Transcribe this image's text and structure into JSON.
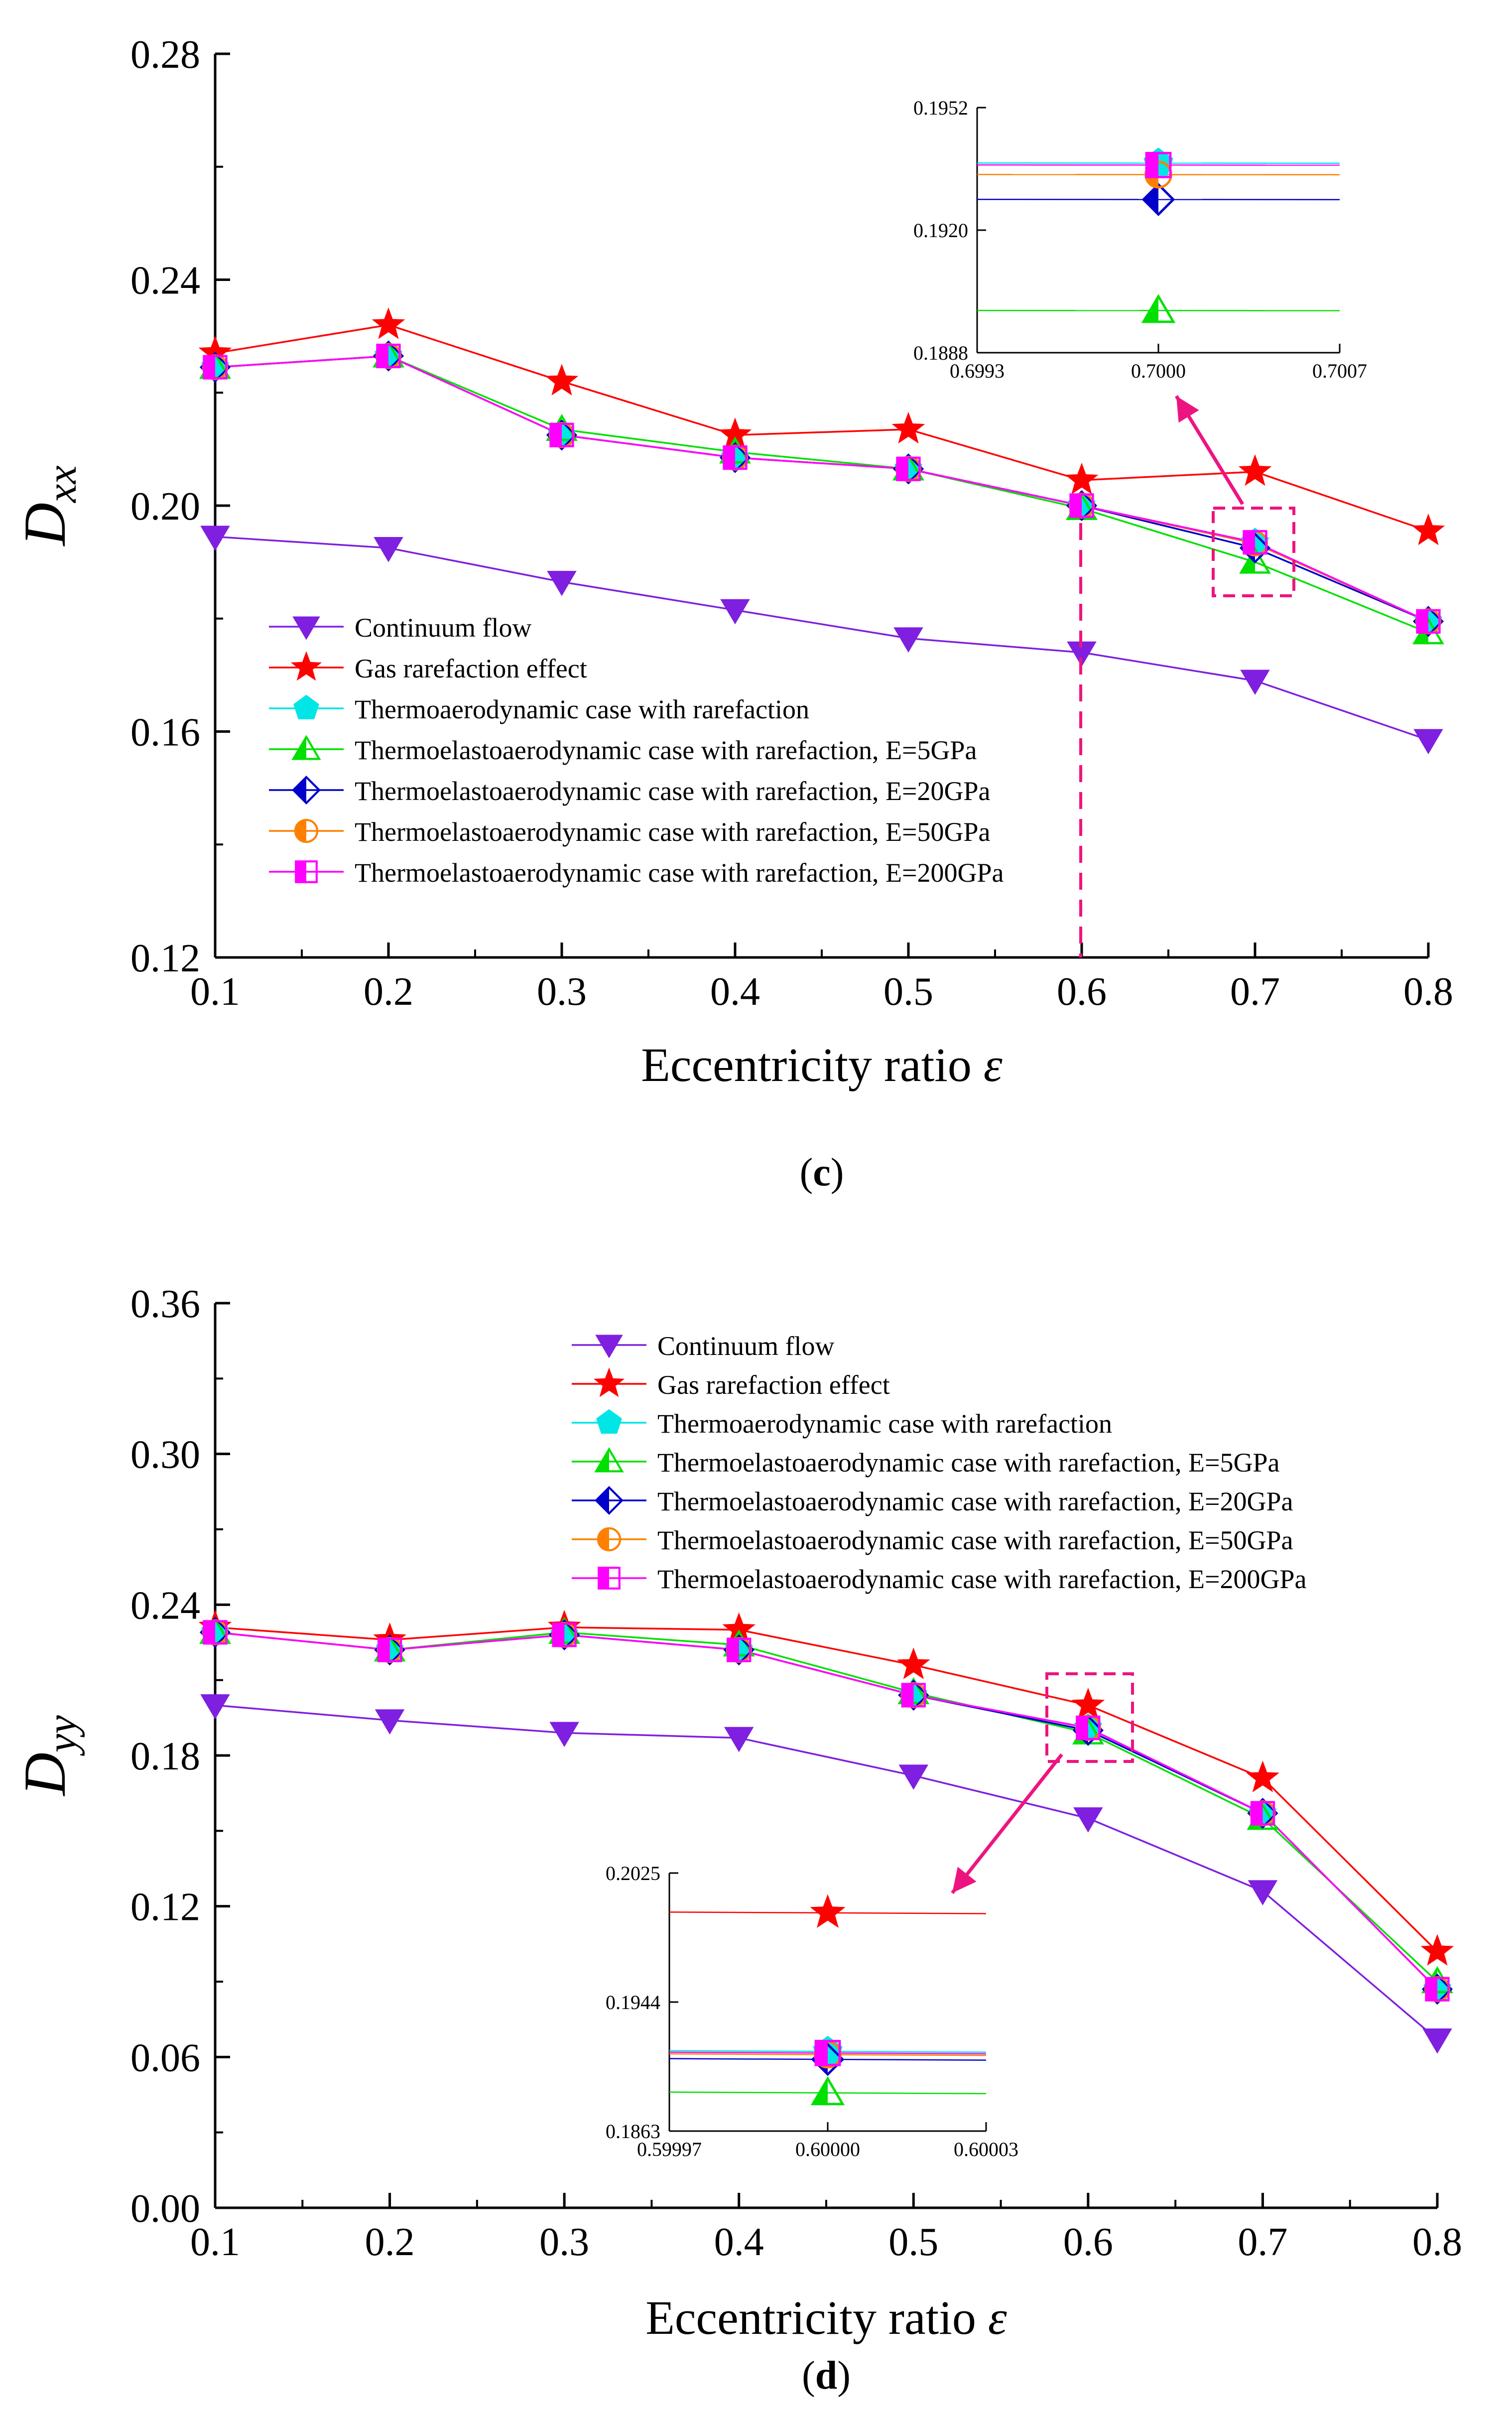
{
  "chart_data": [
    {
      "type": "line",
      "id": "c",
      "panel_label": "c",
      "xlabel": "Eccentricity ratio",
      "xlabel_symbol": "ε",
      "ylabel": "D",
      "ylabel_sub": "xx",
      "xlim": [
        0.1,
        0.8
      ],
      "ylim": [
        0.12,
        0.28
      ],
      "xticks": [
        "0.1",
        "0.2",
        "0.3",
        "0.4",
        "0.5",
        "0.6",
        "0.7",
        "0.8"
      ],
      "yticks": [
        "0.12",
        "0.16",
        "0.20",
        "0.24",
        "0.28"
      ],
      "x": [
        0.1,
        0.2,
        0.3,
        0.4,
        0.5,
        0.6,
        0.7,
        0.8
      ],
      "legend_position": "lower-left",
      "series": [
        {
          "name": "Continuum flow",
          "color": "#7f1fe0",
          "marker": "triangle-down",
          "values": [
            0.1945,
            0.1925,
            0.1865,
            0.1815,
            0.1765,
            0.174,
            0.169,
            0.1585
          ]
        },
        {
          "name": "Gas rarefaction effect",
          "color": "#ff0000",
          "marker": "star",
          "values": [
            0.227,
            0.232,
            0.222,
            0.2125,
            0.2135,
            0.2045,
            0.206,
            0.1955
          ]
        },
        {
          "name": "Thermoaerodynamic case with rarefaction",
          "color": "#00e5e5",
          "marker": "pentagon",
          "values": [
            0.2245,
            0.2265,
            0.2125,
            0.2085,
            0.2065,
            0.2,
            0.1935,
            0.1795
          ]
        },
        {
          "name": "Thermoelastoaerodynamic case with rarefaction, E=5GPa",
          "color": "#00e000",
          "marker": "triangle-up",
          "values": [
            0.2245,
            0.2265,
            0.2135,
            0.2095,
            0.2065,
            0.1995,
            0.19,
            0.1775
          ]
        },
        {
          "name": "Thermoelastoaerodynamic case with rarefaction, E=20GPa",
          "color": "#0000cc",
          "marker": "diamond",
          "values": [
            0.2245,
            0.2265,
            0.2125,
            0.2085,
            0.2065,
            0.2,
            0.1925,
            0.1795
          ]
        },
        {
          "name": "Thermoelastoaerodynamic case with rarefaction, E=50GPa",
          "color": "#ff8000",
          "marker": "circle-half",
          "values": [
            0.2245,
            0.2265,
            0.2125,
            0.2085,
            0.2065,
            0.2,
            0.1933,
            0.1795
          ]
        },
        {
          "name": "Thermoelastoaerodynamic case with rarefaction, E=200GPa",
          "color": "#ff00ff",
          "marker": "square-half",
          "values": [
            0.2245,
            0.2265,
            0.2125,
            0.2085,
            0.2065,
            0.2,
            0.1935,
            0.1795
          ]
        }
      ],
      "inset": {
        "xlim": [
          0.6993,
          0.7007
        ],
        "ylim": [
          0.1888,
          0.1952
        ],
        "xticks": [
          "0.6993",
          "0.7000",
          "0.7007"
        ],
        "yticks": [
          "0.1888",
          "0.1920",
          "0.1952"
        ],
        "x_center": 0.7,
        "series": [
          {
            "name": "Continuum flow",
            "values": [],
            "slope": 0
          },
          {
            "name": "Gas rarefaction effect",
            "values": [],
            "slope": 0
          },
          {
            "name": "Thermoaerodynamic case with rarefaction",
            "values": [
              0.19375
            ],
            "slope": -5e-05
          },
          {
            "name": "Thermoelastoaerodynamic case with rarefaction, E=5GPa",
            "values": [
              0.1899
            ],
            "slope": -5e-05
          },
          {
            "name": "Thermoelastoaerodynamic case with rarefaction, E=20GPa",
            "values": [
              0.1928
            ],
            "slope": -5e-05
          },
          {
            "name": "Thermoelastoaerodynamic case with rarefaction, E=50GPa",
            "values": [
              0.19345
            ],
            "slope": -5e-05
          },
          {
            "name": "Thermoelastoaerodynamic case with rarefaction, E=200GPa",
            "values": [
              0.1937
            ],
            "slope": -5e-05
          }
        ]
      }
    },
    {
      "type": "line",
      "id": "d",
      "panel_label": "d",
      "xlabel": "Eccentricity ratio",
      "xlabel_symbol": "ε",
      "ylabel": "D",
      "ylabel_sub": "yy",
      "xlim": [
        0.1,
        0.8
      ],
      "ylim": [
        0.0,
        0.36
      ],
      "xticks": [
        "0.1",
        "0.2",
        "0.3",
        "0.4",
        "0.5",
        "0.6",
        "0.7",
        "0.8"
      ],
      "yticks": [
        "0.00",
        "0.06",
        "0.12",
        "0.18",
        "0.24",
        "0.30",
        "0.36"
      ],
      "x": [
        0.1,
        0.2,
        0.3,
        0.4,
        0.5,
        0.6,
        0.7,
        0.8
      ],
      "legend_position": "top-right",
      "series": [
        {
          "name": "Continuum flow",
          "color": "#7f1fe0",
          "marker": "triangle-down",
          "values": [
            0.2,
            0.194,
            0.189,
            0.187,
            0.172,
            0.155,
            0.126,
            0.067
          ]
        },
        {
          "name": "Gas rarefaction effect",
          "color": "#ff0000",
          "marker": "star",
          "values": [
            0.231,
            0.226,
            0.231,
            0.23,
            0.216,
            0.2,
            0.171,
            0.102
          ]
        },
        {
          "name": "Thermoaerodynamic case with rarefaction",
          "color": "#00e5e5",
          "marker": "pentagon",
          "values": [
            0.229,
            0.222,
            0.228,
            0.222,
            0.204,
            0.191,
            0.157,
            0.087
          ]
        },
        {
          "name": "Thermoelastoaerodynamic case with rarefaction, E=5GPa",
          "color": "#00e000",
          "marker": "triangle-up",
          "values": [
            0.229,
            0.222,
            0.229,
            0.224,
            0.205,
            0.189,
            0.155,
            0.09
          ]
        },
        {
          "name": "Thermoelastoaerodynamic case with rarefaction, E=20GPa",
          "color": "#0000cc",
          "marker": "diamond",
          "values": [
            0.229,
            0.222,
            0.228,
            0.222,
            0.204,
            0.19,
            0.157,
            0.087
          ]
        },
        {
          "name": "Thermoelastoaerodynamic case with rarefaction, E=50GPa",
          "color": "#ff8000",
          "marker": "circle-half",
          "values": [
            0.229,
            0.222,
            0.228,
            0.222,
            0.204,
            0.191,
            0.157,
            0.087
          ]
        },
        {
          "name": "Thermoelastoaerodynamic case with rarefaction, E=200GPa",
          "color": "#ff00ff",
          "marker": "square-half",
          "values": [
            0.229,
            0.222,
            0.228,
            0.222,
            0.204,
            0.191,
            0.157,
            0.087
          ]
        }
      ],
      "inset": {
        "xlim": [
          0.59997,
          0.60003
        ],
        "ylim": [
          0.1863,
          0.2025
        ],
        "xticks": [
          "0.59997",
          "0.60000",
          "0.60003"
        ],
        "yticks": [
          "0.1863",
          "0.1944",
          "0.2025"
        ],
        "x_center": 0.6,
        "series": [
          {
            "name": "Continuum flow",
            "values": [],
            "slope": 0
          },
          {
            "name": "Gas rarefaction effect",
            "values": [
              0.2
            ],
            "slope": -0.0003
          },
          {
            "name": "Thermoaerodynamic case with rarefaction",
            "values": [
              0.1913
            ],
            "slope": -0.0003
          },
          {
            "name": "Thermoelastoaerodynamic case with rarefaction, E=5GPa",
            "values": [
              0.1887
            ],
            "slope": -0.0003
          },
          {
            "name": "Thermoelastoaerodynamic case with rarefaction, E=20GPa",
            "values": [
              0.1908
            ],
            "slope": -0.0003
          },
          {
            "name": "Thermoelastoaerodynamic case with rarefaction, E=50GPa",
            "values": [
              0.1911
            ],
            "slope": -0.0003
          },
          {
            "name": "Thermoelastoaerodynamic case with rarefaction, E=200GPa",
            "values": [
              0.1912
            ],
            "slope": -0.0003
          }
        ]
      }
    }
  ]
}
